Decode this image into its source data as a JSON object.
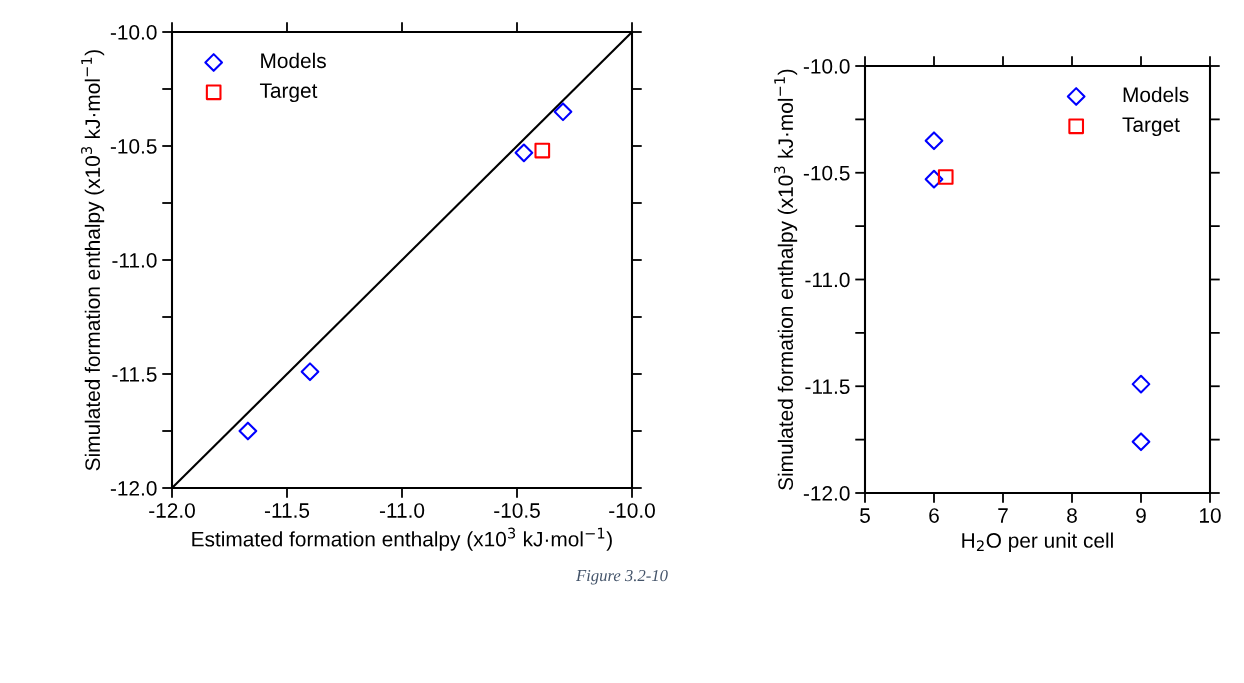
{
  "chart_data": [
    {
      "type": "scatter",
      "xlabel": "Estimated formation enthalpy (x10$^{3}$ kJ·mol$^{−1}$)",
      "ylabel": "Simulated formation enthalpy (x10$^{3}$ kJ·mol$^{−1}$)",
      "series": [
        {
          "name": "Models",
          "color": "#0000ff",
          "marker": "diamond",
          "x": [
            -11.67,
            -11.4,
            -10.47,
            -10.3
          ],
          "values": [
            -11.75,
            -11.49,
            -10.53,
            -10.35
          ]
        },
        {
          "name": "Target",
          "color": "#ff0000",
          "marker": "square",
          "x": [
            -10.39
          ],
          "values": [
            -10.52
          ]
        },
        {
          "type": "line",
          "color": "#000000",
          "x": [
            -12,
            -10
          ],
          "values": [
            -12,
            -10
          ]
        }
      ],
      "xlim": [
        -12,
        -10
      ],
      "ylim": [
        -12,
        -10
      ],
      "xticks": [
        {
          "value": -12,
          "label": "-12.0"
        },
        -11.5,
        {
          "value": -11,
          "label": "-11.0"
        },
        -10.5,
        {
          "value": -10,
          "label": "-10.0"
        }
      ],
      "yticks": [
        {
          "value": -12,
          "label": "-12.0"
        },
        {
          "value": -11.75,
          "label": null
        },
        {
          "value": -11.5,
          "label": "-11.5"
        },
        {
          "value": -11.25,
          "label": null
        },
        {
          "value": -11,
          "label": "-11.0"
        },
        {
          "value": -10.75,
          "label": null
        },
        {
          "value": -10.5,
          "label": "-10.5"
        },
        {
          "value": -10.25,
          "label": null
        },
        {
          "value": -10,
          "label": "-10.0"
        }
      ],
      "legend": "top left",
      "grid": false
    },
    {
      "type": "scatter",
      "xlabel": "H$_{2}$O per unit cell",
      "ylabel": "Simulated formation enthalpy (x10$^{3}$ kJ·mol$^{−1}$)",
      "series": [
        {
          "name": "Models",
          "color": "#0000ff",
          "marker": "diamond",
          "x": [
            6,
            6,
            9,
            9
          ],
          "values": [
            -10.35,
            -10.53,
            -11.49,
            -11.76
          ]
        },
        {
          "name": "Target",
          "color": "#ff0000",
          "marker": "square",
          "x": [
            6.17
          ],
          "values": [
            -10.52
          ]
        }
      ],
      "xlim": [
        5,
        10
      ],
      "ylim": [
        -12,
        -10
      ],
      "xticks": [
        5,
        6,
        7,
        8,
        9,
        10
      ],
      "yticks": [
        {
          "value": -12,
          "label": "-12.0"
        },
        {
          "value": -11.75,
          "label": null
        },
        {
          "value": -11.5,
          "label": "-11.5"
        },
        {
          "value": -11.25,
          "label": null
        },
        {
          "value": -11,
          "label": "-11.0"
        },
        {
          "value": -10.75,
          "label": null
        },
        {
          "value": -10.5,
          "label": "-10.5"
        },
        {
          "value": -10.25,
          "label": null
        },
        {
          "value": -10,
          "label": "-10.0"
        }
      ],
      "annotations": [
        "Figure 3.2-10"
      ],
      "legend": "top right",
      "grid": false
    }
  ]
}
